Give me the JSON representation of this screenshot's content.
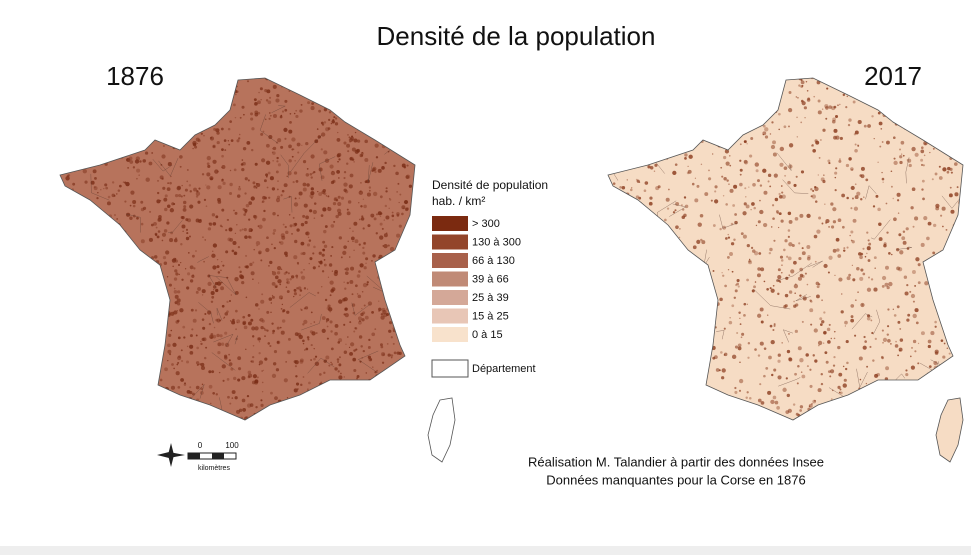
{
  "title": "Densité de la population",
  "maps": [
    {
      "label": "1876",
      "base": "#b7735c",
      "speck": "#7a2d16"
    },
    {
      "label": "2017",
      "base": "#f6dcc4",
      "speck": "#8a3a1c"
    }
  ],
  "legend": {
    "title": "Densité de population",
    "unit": "hab. / km²",
    "classes": [
      {
        "label": "> 300",
        "color": "#7b2a10"
      },
      {
        "label": "130 à 300",
        "color": "#93452a"
      },
      {
        "label": "66 à 130",
        "color": "#a8604a"
      },
      {
        "label": "39 à 66",
        "color": "#c08a76"
      },
      {
        "label": "25 à 39",
        "color": "#d4a898"
      },
      {
        "label": "15 à 25",
        "color": "#e8c6b6"
      },
      {
        "label": "0 à 15",
        "color": "#f8e2cc"
      }
    ],
    "boundary": "Département"
  },
  "scale": {
    "ticks": [
      "0",
      "100"
    ],
    "unit": "kilomètres"
  },
  "credits": [
    "Réalisation M. Talandier à partir des données Insee",
    "Données manquantes pour la Corse en 1876"
  ]
}
